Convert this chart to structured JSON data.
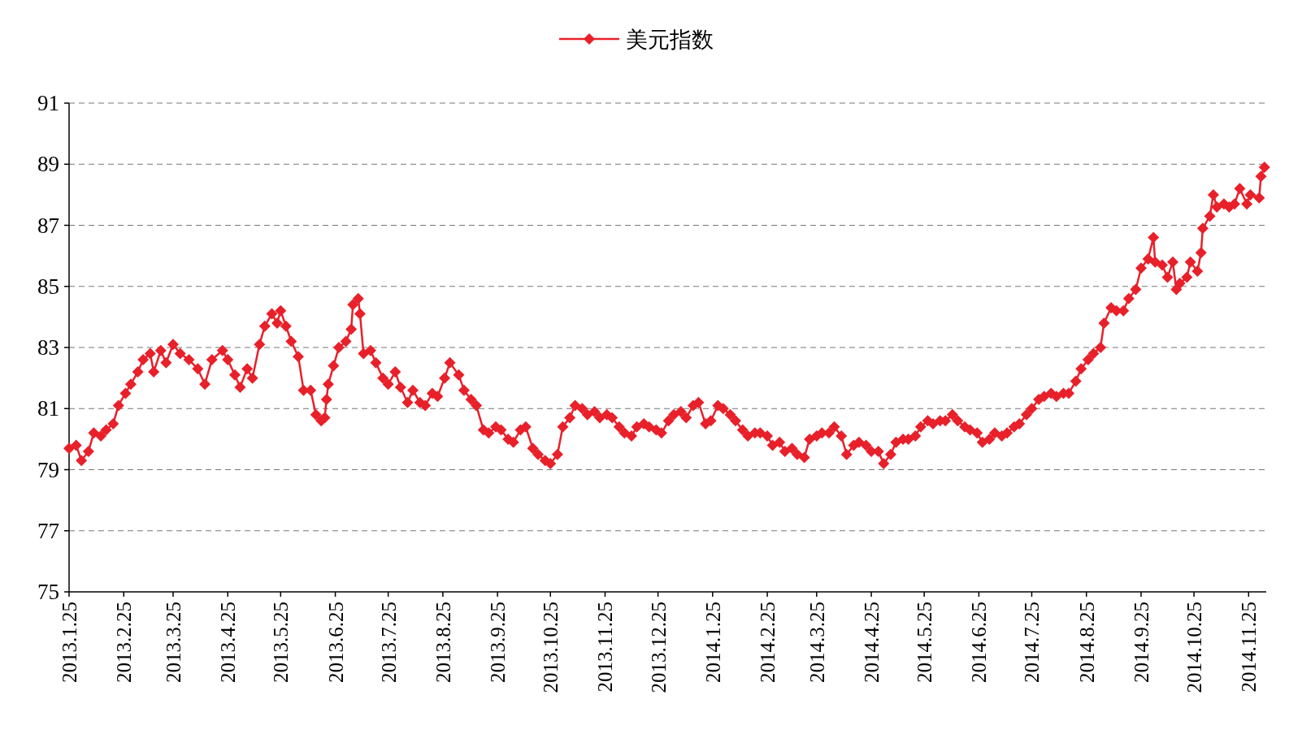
{
  "chart_data": {
    "type": "line",
    "xlim": [
      "2013-01-25",
      "2014-12-05"
    ],
    "ylim": [
      75,
      91
    ],
    "yticks": [
      75,
      77,
      79,
      81,
      83,
      85,
      87,
      89,
      91
    ],
    "xticks": [
      {
        "value": "2013-01-25",
        "label": "2013.1.25"
      },
      {
        "value": "2013-02-25",
        "label": "2013.2.25"
      },
      {
        "value": "2013-03-25",
        "label": "2013.3.25"
      },
      {
        "value": "2013-04-25",
        "label": "2013.4.25"
      },
      {
        "value": "2013-05-25",
        "label": "2013.5.25"
      },
      {
        "value": "2013-06-25",
        "label": "2013.6.25"
      },
      {
        "value": "2013-07-25",
        "label": "2013.7.25"
      },
      {
        "value": "2013-08-25",
        "label": "2013.8.25"
      },
      {
        "value": "2013-09-25",
        "label": "2013.9.25"
      },
      {
        "value": "2013-10-25",
        "label": "2013.10.25"
      },
      {
        "value": "2013-11-25",
        "label": "2013.11.25"
      },
      {
        "value": "2013-12-25",
        "label": "2013.12.25"
      },
      {
        "value": "2014-01-25",
        "label": "2014.1.25"
      },
      {
        "value": "2014-02-25",
        "label": "2014.2.25"
      },
      {
        "value": "2014-03-25",
        "label": "2014.3.25"
      },
      {
        "value": "2014-04-25",
        "label": "2014.4.25"
      },
      {
        "value": "2014-05-25",
        "label": "2014.5.25"
      },
      {
        "value": "2014-06-25",
        "label": "2014.6.25"
      },
      {
        "value": "2014-07-25",
        "label": "2014.7.25"
      },
      {
        "value": "2014-08-25",
        "label": "2014.8.25"
      },
      {
        "value": "2014-09-25",
        "label": "2014.9.25"
      },
      {
        "value": "2014-10-25",
        "label": "2014.10.25"
      },
      {
        "value": "2014-11-25",
        "label": "2014.11.25"
      }
    ],
    "grid": "y",
    "legend": "top",
    "marker": "diamond",
    "line_style": "solid",
    "x": [
      "2013-01-25",
      "2013-01-29",
      "2013-02-01",
      "2013-02-05",
      "2013-02-08",
      "2013-02-12",
      "2013-02-15",
      "2013-02-19",
      "2013-02-22",
      "2013-02-26",
      "2013-03-01",
      "2013-03-05",
      "2013-03-08",
      "2013-03-12",
      "2013-03-14",
      "2013-03-18",
      "2013-03-21",
      "2013-03-25",
      "2013-03-29",
      "2013-04-03",
      "2013-04-08",
      "2013-04-12",
      "2013-04-16",
      "2013-04-22",
      "2013-04-25",
      "2013-04-29",
      "2013-05-02",
      "2013-05-06",
      "2013-05-09",
      "2013-05-13",
      "2013-05-16",
      "2013-05-20",
      "2013-05-23",
      "2013-05-25",
      "2013-05-28",
      "2013-05-31",
      "2013-06-04",
      "2013-06-07",
      "2013-06-11",
      "2013-06-14",
      "2013-06-17",
      "2013-06-19",
      "2013-06-20",
      "2013-06-21",
      "2013-06-24",
      "2013-06-27",
      "2013-07-01",
      "2013-07-04",
      "2013-07-05",
      "2013-07-08",
      "2013-07-09",
      "2013-07-11",
      "2013-07-15",
      "2013-07-18",
      "2013-07-22",
      "2013-07-25",
      "2013-07-29",
      "2013-08-01",
      "2013-08-05",
      "2013-08-08",
      "2013-08-12",
      "2013-08-15",
      "2013-08-19",
      "2013-08-22",
      "2013-08-26",
      "2013-08-29",
      "2013-09-03",
      "2013-09-06",
      "2013-09-10",
      "2013-09-13",
      "2013-09-17",
      "2013-09-20",
      "2013-09-24",
      "2013-09-27",
      "2013-10-01",
      "2013-10-04",
      "2013-10-08",
      "2013-10-11",
      "2013-10-15",
      "2013-10-18",
      "2013-10-22",
      "2013-10-25",
      "2013-10-29",
      "2013-11-01",
      "2013-11-05",
      "2013-11-08",
      "2013-11-12",
      "2013-11-15",
      "2013-11-19",
      "2013-11-22",
      "2013-11-26",
      "2013-11-29",
      "2013-12-03",
      "2013-12-06",
      "2013-12-10",
      "2013-12-13",
      "2013-12-17",
      "2013-12-20",
      "2013-12-24",
      "2013-12-27",
      "2013-12-31",
      "2014-01-03",
      "2014-01-07",
      "2014-01-10",
      "2014-01-14",
      "2014-01-17",
      "2014-01-21",
      "2014-01-24",
      "2014-01-28",
      "2014-01-31",
      "2014-02-04",
      "2014-02-07",
      "2014-02-11",
      "2014-02-14",
      "2014-02-18",
      "2014-02-21",
      "2014-02-25",
      "2014-02-28",
      "2014-03-04",
      "2014-03-07",
      "2014-03-11",
      "2014-03-14",
      "2014-03-18",
      "2014-03-21",
      "2014-03-25",
      "2014-03-28",
      "2014-04-01",
      "2014-04-04",
      "2014-04-08",
      "2014-04-11",
      "2014-04-15",
      "2014-04-18",
      "2014-04-22",
      "2014-04-25",
      "2014-04-29",
      "2014-05-02",
      "2014-05-06",
      "2014-05-09",
      "2014-05-13",
      "2014-05-16",
      "2014-05-20",
      "2014-05-23",
      "2014-05-27",
      "2014-05-30",
      "2014-06-03",
      "2014-06-06",
      "2014-06-10",
      "2014-06-13",
      "2014-06-17",
      "2014-06-20",
      "2014-06-24",
      "2014-06-27",
      "2014-07-01",
      "2014-07-04",
      "2014-07-08",
      "2014-07-11",
      "2014-07-15",
      "2014-07-18",
      "2014-07-22",
      "2014-07-25",
      "2014-07-29",
      "2014-08-01",
      "2014-08-05",
      "2014-08-08",
      "2014-08-12",
      "2014-08-15",
      "2014-08-19",
      "2014-08-22",
      "2014-08-26",
      "2014-08-29",
      "2014-09-02",
      "2014-09-04",
      "2014-09-08",
      "2014-09-11",
      "2014-09-15",
      "2014-09-18",
      "2014-09-22",
      "2014-09-25",
      "2014-09-29",
      "2014-10-02",
      "2014-10-03",
      "2014-10-07",
      "2014-10-10",
      "2014-10-13",
      "2014-10-15",
      "2014-10-17",
      "2014-10-21",
      "2014-10-23",
      "2014-10-27",
      "2014-10-29",
      "2014-10-30",
      "2014-11-03",
      "2014-11-05",
      "2014-11-07",
      "2014-11-11",
      "2014-11-14",
      "2014-11-17",
      "2014-11-20",
      "2014-11-24",
      "2014-11-26",
      "2014-12-01",
      "2014-12-02",
      "2014-12-04"
    ],
    "series": [
      {
        "name": "美元指数",
        "color": "#e8202a",
        "values": [
          79.7,
          79.8,
          79.3,
          79.6,
          80.2,
          80.1,
          80.3,
          80.5,
          81.1,
          81.5,
          81.8,
          82.2,
          82.6,
          82.8,
          82.2,
          82.9,
          82.5,
          83.1,
          82.8,
          82.6,
          82.3,
          81.8,
          82.6,
          82.9,
          82.6,
          82.1,
          81.7,
          82.3,
          82.0,
          83.1,
          83.7,
          84.1,
          83.8,
          84.2,
          83.7,
          83.2,
          82.7,
          81.6,
          81.6,
          80.8,
          80.6,
          80.7,
          81.3,
          81.8,
          82.4,
          83.0,
          83.2,
          83.6,
          84.4,
          84.6,
          84.1,
          82.8,
          82.9,
          82.5,
          82.0,
          81.8,
          82.2,
          81.7,
          81.2,
          81.6,
          81.2,
          81.1,
          81.5,
          81.4,
          82.0,
          82.5,
          82.1,
          81.6,
          81.3,
          81.1,
          80.3,
          80.2,
          80.4,
          80.3,
          80.0,
          79.9,
          80.3,
          80.4,
          79.7,
          79.5,
          79.3,
          79.2,
          79.5,
          80.4,
          80.7,
          81.1,
          81.0,
          80.8,
          80.9,
          80.7,
          80.8,
          80.7,
          80.4,
          80.2,
          80.1,
          80.4,
          80.5,
          80.4,
          80.3,
          80.2,
          80.6,
          80.8,
          80.9,
          80.7,
          81.1,
          81.2,
          80.5,
          80.6,
          81.1,
          81.0,
          80.8,
          80.6,
          80.3,
          80.1,
          80.2,
          80.2,
          80.1,
          79.8,
          79.9,
          79.6,
          79.7,
          79.5,
          79.4,
          80.0,
          80.1,
          80.2,
          80.2,
          80.4,
          80.1,
          79.5,
          79.8,
          79.9,
          79.8,
          79.6,
          79.6,
          79.2,
          79.5,
          79.9,
          80.0,
          80.0,
          80.1,
          80.4,
          80.6,
          80.5,
          80.6,
          80.6,
          80.8,
          80.6,
          80.4,
          80.3,
          80.2,
          79.9,
          80.0,
          80.2,
          80.1,
          80.2,
          80.4,
          80.5,
          80.8,
          81.0,
          81.3,
          81.4,
          81.5,
          81.4,
          81.5,
          81.5,
          81.9,
          82.3,
          82.6,
          82.8,
          83.0,
          83.8,
          84.3,
          84.2,
          84.2,
          84.6,
          84.9,
          85.6,
          85.9,
          86.6,
          85.8,
          85.7,
          85.3,
          85.8,
          84.9,
          85.1,
          85.3,
          85.8,
          85.5,
          86.1,
          86.9,
          87.3,
          88.0,
          87.6,
          87.7,
          87.6,
          87.7,
          88.2,
          87.7,
          88.0,
          87.9,
          88.6,
          88.9
        ]
      }
    ]
  }
}
